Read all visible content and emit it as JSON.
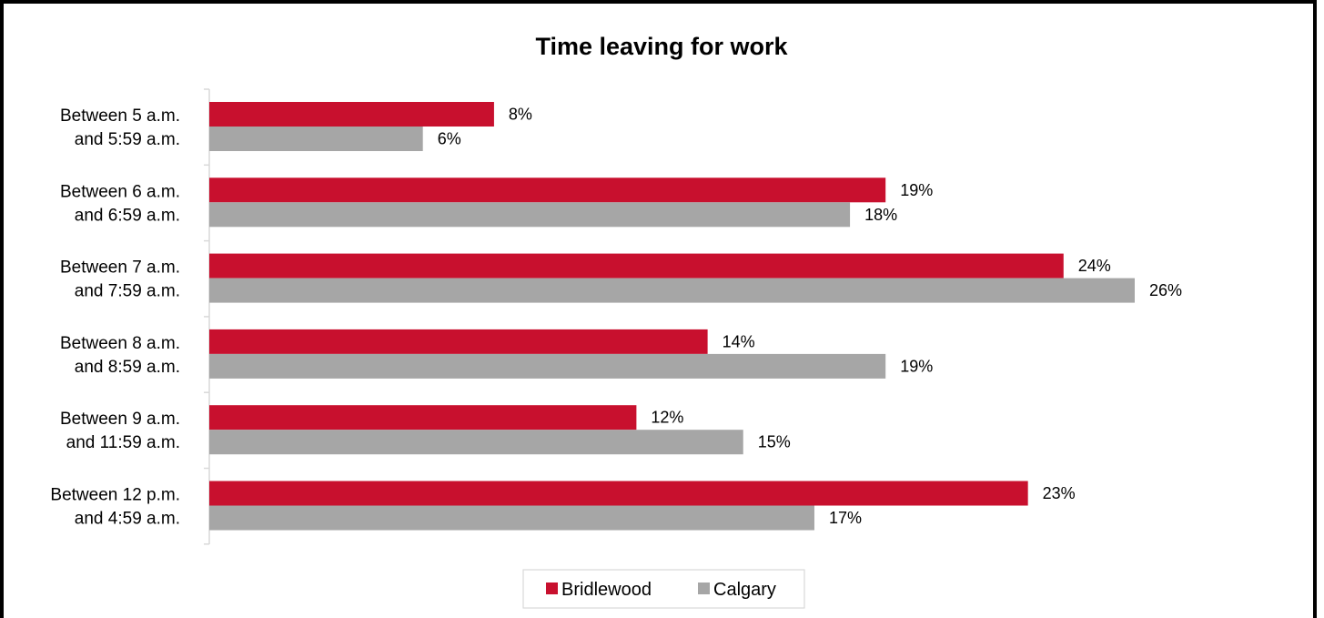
{
  "chart_data": {
    "type": "bar",
    "orientation": "horizontal",
    "title": "Time leaving for work",
    "categories": [
      [
        "Between 5 a.m.",
        "and 5:59 a.m."
      ],
      [
        "Between 6 a.m.",
        "and 6:59 a.m."
      ],
      [
        "Between 7 a.m.",
        "and 7:59 a.m."
      ],
      [
        "Between 8 a.m.",
        "and 8:59 a.m."
      ],
      [
        "Between 9 a.m.",
        "and 11:59 a.m."
      ],
      [
        "Between 12 p.m.",
        "and 4:59 a.m."
      ]
    ],
    "series": [
      {
        "name": "Bridlewood",
        "color": "#C8102E",
        "values": [
          8,
          19,
          24,
          14,
          12,
          23
        ],
        "labels": [
          "8%",
          "19%",
          "24%",
          "14%",
          "12%",
          "23%"
        ]
      },
      {
        "name": "Calgary",
        "color": "#A6A6A6",
        "values": [
          6,
          18,
          26,
          19,
          15,
          17
        ],
        "labels": [
          "6%",
          "18%",
          "26%",
          "19%",
          "15%",
          "17%"
        ]
      }
    ],
    "xlim": [
      0,
      26
    ],
    "grid": false,
    "legend": "bottom-center"
  }
}
